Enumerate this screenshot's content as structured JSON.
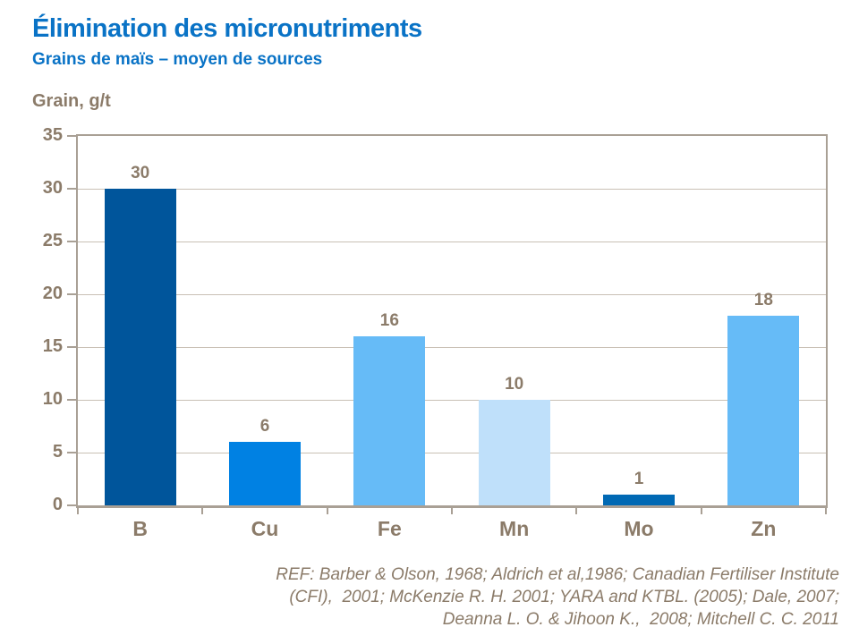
{
  "header": {
    "title": "Élimination des micronutriments",
    "subtitle": "Grains de maïs – moyen de sources"
  },
  "chart_data": {
    "type": "bar",
    "title": "Élimination des micronutriments",
    "subtitle": "Grains de maïs – moyen de sources",
    "categories": [
      "B",
      "Cu",
      "Fe",
      "Mn",
      "Mo",
      "Zn"
    ],
    "values": [
      30,
      6,
      16,
      10,
      1,
      18
    ],
    "bar_colors": [
      "#00559B",
      "#0081E3",
      "#66BBF7",
      "#BFE0FA",
      "#0069B4",
      "#66BBF7"
    ],
    "xlabel": "",
    "ylabel": "Grain, g/t",
    "ylim": [
      0,
      35
    ],
    "ytick_step": 5,
    "grid": true,
    "legend": "none",
    "value_labels": true
  },
  "reference": {
    "lines": [
      "REF: Barber & Olson, 1968; Aldrich et al,1986; Canadian Fertiliser Institute",
      "(CFI),  2001; McKenzie R. H. 2001; YARA and KTBL. (2005); Dale, 2007;",
      "Deanna L. O. & Jihoon K.,  2008; Mitchell C. C. 2011"
    ]
  },
  "colors": {
    "title_blue": "#0A73C6",
    "axis_text_brown": "#8B7B69",
    "gridline_tan": "#C9C0B5",
    "axis_line_tan": "#A9A095"
  }
}
